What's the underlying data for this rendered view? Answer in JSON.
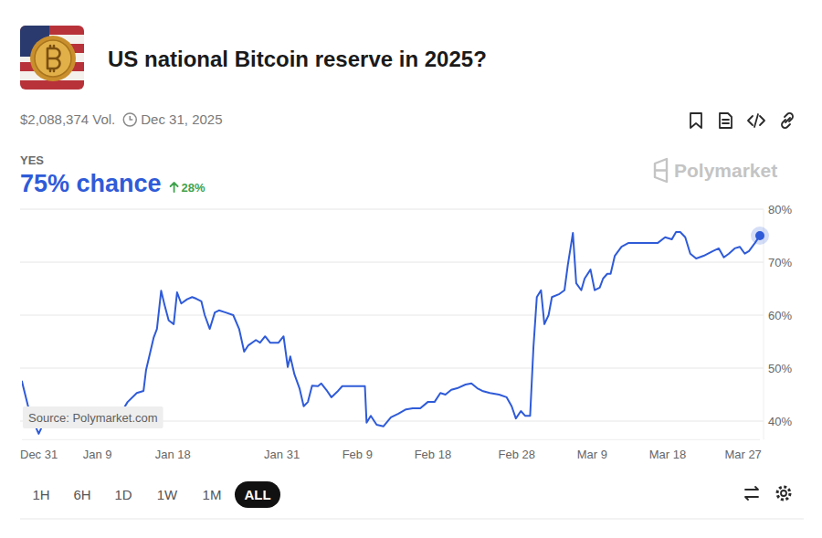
{
  "chart_data": {
    "type": "line",
    "title": "US national Bitcoin reserve in 2025?",
    "source": "Source: Polymarket.com",
    "color": "#2f5bd8",
    "grid": true,
    "xlim": [
      0,
      88
    ],
    "xticks": [
      {
        "value": 0,
        "label": "Dec 31"
      },
      {
        "value": 9,
        "label": "Jan 9"
      },
      {
        "value": 18,
        "label": "Jan 18"
      },
      {
        "value": 31,
        "label": "Jan 31"
      },
      {
        "value": 40,
        "label": "Feb 9"
      },
      {
        "value": 49,
        "label": "Feb 18"
      },
      {
        "value": 59,
        "label": "Feb 28"
      },
      {
        "value": 68,
        "label": "Mar 9"
      },
      {
        "value": 77,
        "label": "Mar 18"
      },
      {
        "value": 86,
        "label": "Mar 27"
      }
    ],
    "ylim": [
      36.5,
      80
    ],
    "yticks": [
      {
        "value": 40,
        "label": "40%"
      },
      {
        "value": 50,
        "label": "50%"
      },
      {
        "value": 60,
        "label": "60%"
      },
      {
        "value": 70,
        "label": "70%"
      },
      {
        "value": 80,
        "label": "80%"
      }
    ],
    "x": [
      0,
      0.7,
      1.2,
      2.0,
      2.7,
      3.5,
      4.4,
      5.3,
      6.3,
      7.2,
      8.3,
      9.4,
      10.5,
      11.3,
      11.8,
      12.6,
      13.7,
      14.5,
      14.8,
      15.7,
      16.1,
      16.6,
      17.0,
      17.5,
      18.1,
      18.5,
      19.0,
      19.7,
      20.3,
      20.8,
      21.4,
      21.8,
      22.4,
      23.0,
      23.5,
      24.3,
      25.2,
      25.9,
      26.5,
      27.0,
      27.9,
      28.4,
      29.0,
      29.6,
      30.6,
      31.2,
      31.7,
      32.0,
      32.5,
      33.1,
      33.6,
      34.1,
      34.6,
      35.3,
      35.7,
      36.3,
      36.9,
      37.7,
      38.2,
      38.8,
      40.9,
      41.1,
      41.6,
      42.3,
      43.1,
      44.0,
      44.9,
      45.8,
      46.6,
      47.5,
      48.4,
      49.2,
      49.9,
      50.5,
      51.2,
      51.9,
      52.9,
      53.6,
      54.3,
      54.9,
      55.8,
      56.9,
      57.8,
      58.4,
      58.9,
      59.5,
      60.0,
      60.6,
      61.0,
      61.4,
      61.9,
      62.3,
      62.8,
      63.2,
      64.1,
      64.7,
      65.1,
      65.7,
      66.1,
      66.7,
      67.1,
      67.8,
      68.3,
      68.9,
      69.3,
      69.8,
      70.2,
      70.7,
      71.5,
      72.3,
      73.1,
      74.7,
      75.8,
      76.7,
      77.5,
      78.0,
      78.5,
      79.1,
      79.7,
      80.4,
      81.3,
      82.4,
      83.1,
      83.7,
      84.3,
      85.0,
      85.6,
      86.2,
      86.7,
      87.4,
      88.0
    ],
    "values": [
      47.5,
      43,
      40.5,
      37.6,
      40,
      39.5,
      41,
      40.5,
      39.7,
      40.2,
      39.8,
      39.7,
      38.8,
      38.8,
      41.5,
      43.6,
      45.3,
      45.7,
      49.6,
      55.7,
      57.4,
      64.6,
      62,
      59,
      58.3,
      64.3,
      62.2,
      63,
      63.4,
      63.1,
      62.6,
      60,
      57.4,
      60.5,
      60.9,
      60.5,
      60,
      57.4,
      53.1,
      54.3,
      55.3,
      54.8,
      56,
      54.8,
      54.8,
      56,
      50.2,
      52.2,
      48.8,
      46.2,
      42.8,
      43.6,
      46.7,
      46.6,
      47.1,
      45.9,
      44.5,
      45.7,
      46.6,
      46.6,
      46.6,
      39.7,
      41,
      39.3,
      39,
      40.7,
      41.4,
      42.2,
      42.4,
      42.4,
      43.6,
      43.6,
      45.3,
      45,
      45.9,
      46.2,
      46.9,
      47.1,
      46.2,
      45.7,
      45.3,
      45,
      44.5,
      42.8,
      40.5,
      41.9,
      41,
      41,
      54,
      63.4,
      64.7,
      58.3,
      60,
      63.4,
      64,
      64.7,
      69.5,
      75.5,
      66,
      64.7,
      66.9,
      68.6,
      64.7,
      65.2,
      66.9,
      67.8,
      67.8,
      71.2,
      72.9,
      73.6,
      73.6,
      73.6,
      73.6,
      74.7,
      74.3,
      75.7,
      75.7,
      74.7,
      71.6,
      70.7,
      71.2,
      72.1,
      72.6,
      70.9,
      71.6,
      72.6,
      72.9,
      71.6,
      72.1,
      73.6,
      75
    ]
  },
  "header": {
    "volume": "$2,088,374 Vol.",
    "end_date": "Dec 31, 2025",
    "outcome": "YES",
    "chance": "75% chance",
    "change": "28%",
    "brand": "Polymarket"
  },
  "range_buttons": [
    "1H",
    "6H",
    "1D",
    "1W",
    "1M",
    "ALL"
  ],
  "selected_range": "ALL"
}
